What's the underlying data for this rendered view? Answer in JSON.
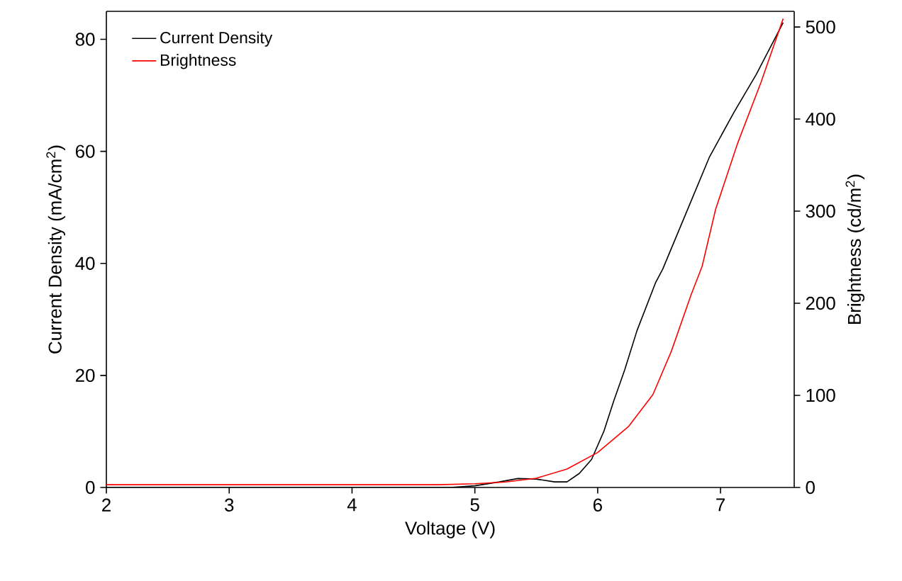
{
  "chart_data": {
    "type": "line",
    "xlabel": "Voltage (V)",
    "ylabel": "Current Density (mA/cm$^{2}$)",
    "y2label": "Brightness (cd/m$^{2}$)",
    "xlim": [
      2,
      7.6
    ],
    "xticks": [
      2,
      3,
      4,
      5,
      6,
      7
    ],
    "ylim": [
      0,
      85
    ],
    "yticks": [
      0,
      20,
      40,
      60,
      80
    ],
    "y2lim": [
      0,
      517
    ],
    "y2ticks": [
      0,
      100,
      200,
      300,
      400,
      500
    ],
    "legend": "top left",
    "grid": false,
    "marker": "none",
    "line_style": "solid",
    "series": [
      {
        "name": "Current Density",
        "color": "#000000",
        "x": [
          2,
          3,
          4,
          4.8,
          5.0,
          5.2,
          5.35,
          5.5,
          5.65,
          5.75,
          5.85,
          5.95,
          6.05,
          6.13,
          6.22,
          6.32,
          6.47,
          6.53,
          6.72,
          6.91,
          7.11,
          7.29,
          7.51
        ],
        "values": [
          0,
          0,
          0,
          0,
          0.3,
          1.0,
          1.6,
          1.5,
          1.0,
          1.0,
          2.5,
          5,
          10,
          15.4,
          21,
          28,
          36.5,
          39,
          49,
          59,
          67,
          73.7,
          83
        ]
      },
      {
        "name": "Brightness",
        "color": "#ff0000",
        "x": [
          2,
          3,
          4,
          4.7,
          5.0,
          5.25,
          5.5,
          5.75,
          6.0,
          6.25,
          6.45,
          6.6,
          6.76,
          6.85,
          6.96,
          7.14,
          7.33,
          7.51
        ],
        "values": [
          3,
          3,
          3,
          3,
          4,
          6,
          10,
          20,
          38,
          66,
          101,
          148,
          209,
          240,
          302,
          374,
          440,
          509
        ],
        "axis": "y2"
      }
    ]
  }
}
